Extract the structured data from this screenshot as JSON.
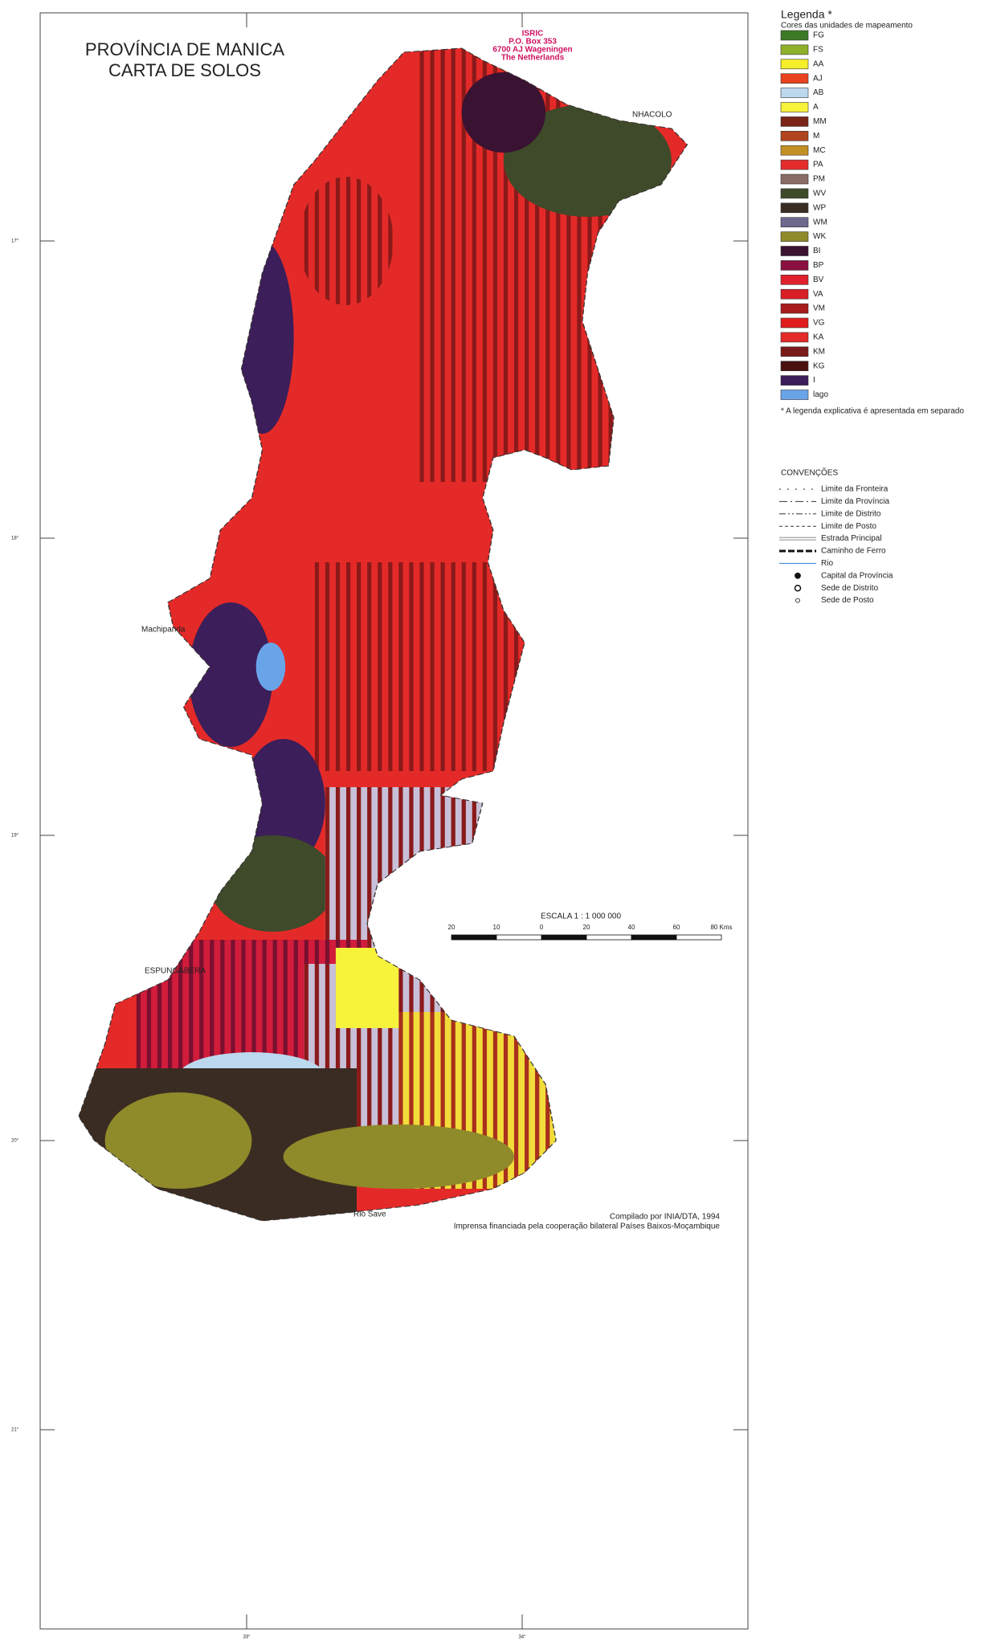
{
  "title": [
    "PROVÍNCIA DE MANICA",
    "CARTA DE SOLOS"
  ],
  "stamp": [
    "ISRIC",
    "P.O. Box 353",
    "6700 AJ Wageningen",
    "The Netherlands"
  ],
  "legend": {
    "title": "Legenda  *",
    "subtitle": "Cores das unidades de mapeamento",
    "items": [
      {
        "code": "FG",
        "color": "#3d7a26"
      },
      {
        "code": "FS",
        "color": "#8fb12a"
      },
      {
        "code": "AA",
        "color": "#f5ee2a"
      },
      {
        "code": "AJ",
        "color": "#e9421e"
      },
      {
        "code": "AB",
        "color": "#bcd8ef"
      },
      {
        "code": "A",
        "color": "#f7f23a"
      },
      {
        "code": "MM",
        "color": "#7b2418"
      },
      {
        "code": "M",
        "color": "#b0441e"
      },
      {
        "code": "MC",
        "color": "#c28f24"
      },
      {
        "code": "PA",
        "color": "#e42c2c"
      },
      {
        "code": "PM",
        "color": "#8b6b66"
      },
      {
        "code": "WV",
        "color": "#3f4a2a"
      },
      {
        "code": "WP",
        "color": "#3a2c22"
      },
      {
        "code": "WM",
        "color": "#6c6a8e"
      },
      {
        "code": "WK",
        "color": "#8f8a2a"
      },
      {
        "code": "BI",
        "color": "#3a1232"
      },
      {
        "code": "BP",
        "color": "#8a1040"
      },
      {
        "code": "BV",
        "color": "#e0202c"
      },
      {
        "code": "VA",
        "color": "#d81e26"
      },
      {
        "code": "VM",
        "color": "#a81c1c"
      },
      {
        "code": "VG",
        "color": "#e01c1c"
      },
      {
        "code": "KA",
        "color": "#e42a28"
      },
      {
        "code": "KM",
        "color": "#7a1a1a"
      },
      {
        "code": "KG",
        "color": "#4a1010"
      },
      {
        "code": "I",
        "color": "#3b1e5a"
      },
      {
        "code": "lago",
        "color": "#6aa4e8"
      }
    ],
    "note": "*  A legenda explicativa é apresentada em separado"
  },
  "conventions": {
    "title": "CONVENÇÕES",
    "items": [
      "Limite da Fronteira",
      "Limite da Província",
      "Limite de Distrito",
      "Limite de Posto",
      "Estrada Principal",
      "Caminho de Ferro",
      "Rio",
      "Capital da Província",
      "Sede de Distrito",
      "Sede de Posto"
    ]
  },
  "scale": {
    "title": "ESCALA  1 : 1 000 000",
    "ticks": [
      "20",
      "10",
      "0",
      "20",
      "40",
      "60",
      "80  Kms"
    ]
  },
  "places": [
    "NHACOLO",
    "Machipanda",
    "ESPUNGABERA",
    "Rio Save"
  ],
  "graticule": {
    "lat": [
      "17°",
      "18°",
      "19°",
      "20°",
      "21°"
    ],
    "lon": [
      "33°",
      "34°"
    ]
  },
  "credits": [
    "Compilado por INIA/DTA, 1994",
    "Imprensa financiada pela cooperação bilateral Países Baixos-Moçambique"
  ]
}
